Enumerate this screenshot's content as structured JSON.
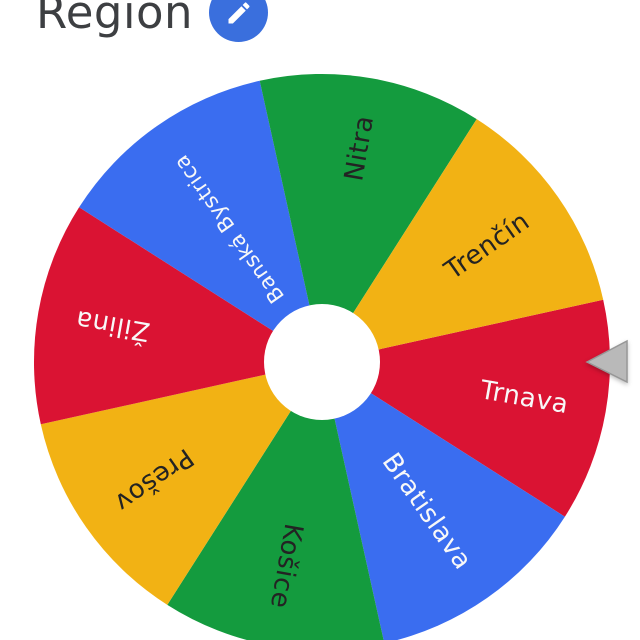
{
  "header": {
    "title": "Region",
    "title_color": "#3d3f42",
    "edit_button": {
      "icon": "pencil-icon",
      "background_color": "#3a6fdd",
      "icon_color": "#ffffff"
    }
  },
  "wheel": {
    "rotation_deg": -12.5,
    "hub_color": "#ffffff",
    "pointer": {
      "fill": "#b9b9b9",
      "stroke": "#979797"
    },
    "palette": {
      "red": "#da1333",
      "blue": "#3a6df0",
      "green": "#149b3e",
      "yellow": "#f2b214"
    },
    "entries": [
      {
        "label": "Trnava",
        "color": "#da1333",
        "text_color": "#f8f8f8"
      },
      {
        "label": "Bratislava",
        "color": "#3a6df0",
        "text_color": "#f8f8f8"
      },
      {
        "label": "Košice",
        "color": "#149b3e",
        "text_color": "#232323"
      },
      {
        "label": "Prešov",
        "color": "#f2b214",
        "text_color": "#232323"
      },
      {
        "label": "Žilina",
        "color": "#da1333",
        "text_color": "#f8f8f8"
      },
      {
        "label": "Banská Bystrica",
        "color": "#3a6df0",
        "text_color": "#f8f8f8"
      },
      {
        "label": "Nitra",
        "color": "#149b3e",
        "text_color": "#232323"
      },
      {
        "label": "Trenčín",
        "color": "#f2b214",
        "text_color": "#232323"
      }
    ],
    "selected_entry": "Trnava"
  }
}
